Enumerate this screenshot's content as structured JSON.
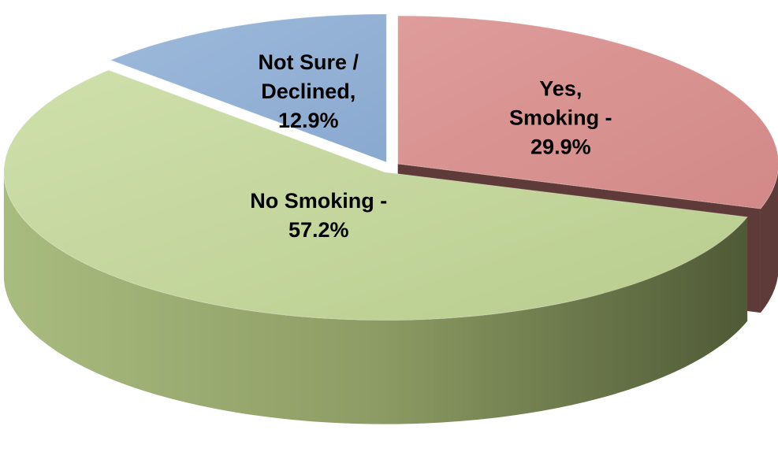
{
  "chart_data": {
    "type": "pie",
    "style": "3d-exploded",
    "slices": [
      {
        "lines": [
          "Yes,",
          "Smoking -",
          "29.9%"
        ],
        "value": 29.9,
        "color": "#d99694",
        "side_color": "#5e3a38"
      },
      {
        "lines": [
          "No Smoking -",
          "57.2%"
        ],
        "value": 57.2,
        "color": "#c3d69b",
        "side_color": "#5f6a41"
      },
      {
        "lines": [
          "Not Sure /",
          "Declined,",
          "12.9%"
        ],
        "value": 12.9,
        "color": "#95b3d7",
        "side_color": "#3c4a5c"
      }
    ]
  }
}
